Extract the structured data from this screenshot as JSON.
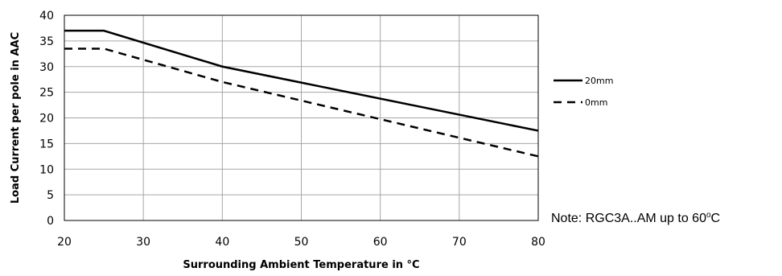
{
  "chart_data": {
    "type": "line",
    "title": "",
    "xlabel": "Surrounding Ambient Temperature in °C",
    "ylabel": "Load Current per pole in AAC",
    "xlim": [
      20,
      80
    ],
    "ylim": [
      0,
      40
    ],
    "x_ticks": [
      20,
      30,
      40,
      50,
      60,
      70,
      80
    ],
    "y_ticks": [
      0,
      5,
      10,
      15,
      20,
      25,
      30,
      35,
      40
    ],
    "grid": true,
    "legend_position": "right",
    "series": [
      {
        "name": "20mm",
        "style": "solid",
        "color": "#000000",
        "x": [
          20,
          25,
          40,
          80
        ],
        "y": [
          37,
          37,
          30,
          17.5
        ]
      },
      {
        "name": "0mm",
        "style": "dashed",
        "color": "#000000",
        "x": [
          20,
          25,
          40,
          80
        ],
        "y": [
          33.5,
          33.5,
          27,
          12.5
        ]
      }
    ],
    "note_prefix": "Note: RGC3A..AM up to 60",
    "note_degree": "o",
    "note_suffix": "C"
  }
}
